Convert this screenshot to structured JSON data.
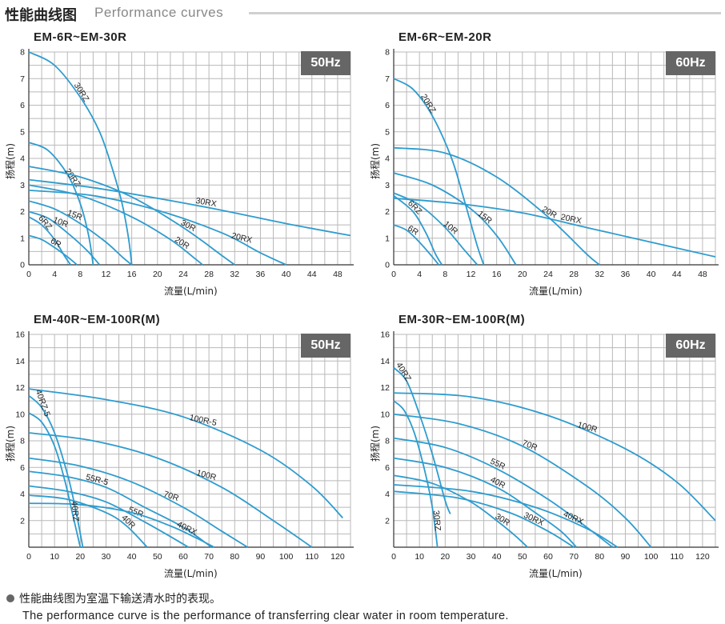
{
  "header": {
    "title_zh": "性能曲线图",
    "title_en": "Performance curves"
  },
  "footer": {
    "note_zh": "性能曲线图为室温下输送清水时的表现。",
    "note_en": "The performance curve is the performance of transferring clear water in room temperature."
  },
  "chart_data": [
    {
      "type": "line",
      "title": "EM-6R~EM-30R",
      "frequency": "50Hz",
      "xlabel": "流量(L/min)",
      "ylabel": "扬程(m)",
      "xlim": [
        0,
        50
      ],
      "ylim": [
        0,
        8
      ],
      "xticks": [
        0,
        4,
        8,
        12,
        16,
        20,
        24,
        28,
        32,
        36,
        40,
        44,
        48
      ],
      "yticks": [
        0,
        1,
        2,
        3,
        4,
        5,
        6,
        7,
        8
      ],
      "grid": true,
      "series": [
        {
          "name": "30RZ",
          "x": [
            0,
            4,
            8,
            11,
            13,
            14.5,
            15.5,
            16
          ],
          "y": [
            8,
            7.5,
            6.3,
            5,
            3.6,
            2.3,
            1,
            0
          ]
        },
        {
          "name": "20RZ",
          "x": [
            0,
            3,
            6,
            8,
            9.3,
            10
          ],
          "y": [
            4.6,
            4.3,
            3.4,
            2.3,
            1.1,
            0
          ]
        },
        {
          "name": "30RX",
          "x": [
            0,
            10,
            20,
            30,
            40,
            50
          ],
          "y": [
            3.2,
            2.9,
            2.5,
            2.05,
            1.55,
            1.1
          ]
        },
        {
          "name": "20RX",
          "x": [
            0,
            10,
            20,
            30,
            36,
            40
          ],
          "y": [
            2.8,
            2.6,
            2.05,
            1.2,
            0.45,
            0
          ]
        },
        {
          "name": "30R",
          "x": [
            0,
            8,
            16,
            24,
            30,
            32
          ],
          "y": [
            3.7,
            3.3,
            2.55,
            1.4,
            0.35,
            0
          ]
        },
        {
          "name": "20R",
          "x": [
            0,
            8,
            16,
            22,
            26,
            27
          ],
          "y": [
            3.0,
            2.6,
            1.8,
            0.95,
            0.2,
            0
          ]
        },
        {
          "name": "15R",
          "x": [
            0,
            4,
            8,
            12,
            14.5,
            16
          ],
          "y": [
            2.4,
            2.1,
            1.55,
            0.85,
            0.3,
            0
          ]
        },
        {
          "name": "10R",
          "x": [
            0,
            3,
            6,
            9,
            11
          ],
          "y": [
            2.0,
            1.75,
            1.2,
            0.55,
            0
          ]
        },
        {
          "name": "6RZ",
          "x": [
            0,
            2,
            4,
            5.5,
            6.5
          ],
          "y": [
            1.8,
            1.5,
            0.95,
            0.35,
            0
          ]
        },
        {
          "name": "6R",
          "x": [
            0,
            2,
            4,
            6,
            7.5
          ],
          "y": [
            1.1,
            0.95,
            0.65,
            0.3,
            0
          ]
        }
      ]
    },
    {
      "type": "line",
      "title": "EM-6R~EM-20R",
      "frequency": "60Hz",
      "xlabel": "流量(L/min)",
      "ylabel": "扬程(m)",
      "xlim": [
        0,
        50
      ],
      "ylim": [
        0,
        8
      ],
      "xticks": [
        0,
        4,
        8,
        12,
        16,
        20,
        24,
        28,
        32,
        36,
        40,
        44,
        48
      ],
      "yticks": [
        0,
        1,
        2,
        3,
        4,
        5,
        6,
        7,
        8
      ],
      "grid": true,
      "series": [
        {
          "name": "20RZ",
          "x": [
            0,
            3,
            6,
            9,
            11,
            13,
            14
          ],
          "y": [
            7.0,
            6.6,
            5.6,
            4.0,
            2.4,
            0.7,
            0
          ]
        },
        {
          "name": "20R",
          "x": [
            0,
            8,
            16,
            24,
            30,
            32
          ],
          "y": [
            4.4,
            4.2,
            3.3,
            1.8,
            0.4,
            0
          ]
        },
        {
          "name": "20RX",
          "x": [
            0,
            10,
            20,
            30,
            40,
            50
          ],
          "y": [
            2.5,
            2.3,
            1.95,
            1.4,
            0.85,
            0.3
          ]
        },
        {
          "name": "15R",
          "x": [
            0,
            6,
            12,
            16,
            19
          ],
          "y": [
            3.45,
            3.0,
            2.1,
            1.1,
            0
          ]
        },
        {
          "name": "10R",
          "x": [
            0,
            4,
            8,
            11,
            13
          ],
          "y": [
            2.7,
            2.25,
            1.4,
            0.55,
            0
          ]
        },
        {
          "name": "6RZ",
          "x": [
            0,
            3,
            5,
            6.5,
            7.5
          ],
          "y": [
            2.6,
            2.0,
            1.2,
            0.4,
            0
          ]
        },
        {
          "name": "6R",
          "x": [
            0,
            2,
            4,
            6,
            7
          ],
          "y": [
            1.5,
            1.3,
            0.85,
            0.3,
            0
          ]
        }
      ]
    },
    {
      "type": "line",
      "title": "EM-40R~EM-100R(M)",
      "frequency": "50Hz",
      "xlabel": "流量(L/min)",
      "ylabel": "扬程(m)",
      "xlim": [
        0,
        125
      ],
      "ylim": [
        0,
        16
      ],
      "xticks": [
        0,
        10,
        20,
        30,
        40,
        50,
        60,
        70,
        80,
        90,
        100,
        110,
        120
      ],
      "yticks": [
        2,
        4,
        6,
        8,
        10,
        12,
        14,
        16
      ],
      "grid": true,
      "series": [
        {
          "name": "100R-5",
          "x": [
            0,
            30,
            60,
            90,
            110,
            122
          ],
          "y": [
            11.9,
            11.1,
            9.8,
            7.3,
            4.6,
            2.2
          ]
        },
        {
          "name": "100R",
          "x": [
            0,
            25,
            50,
            75,
            95,
            110
          ],
          "y": [
            8.6,
            8.0,
            6.7,
            4.5,
            2.0,
            0
          ]
        },
        {
          "name": "70R",
          "x": [
            0,
            20,
            40,
            60,
            75,
            85
          ],
          "y": [
            6.7,
            6.1,
            4.9,
            3.0,
            1.2,
            0
          ]
        },
        {
          "name": "55R-5",
          "x": [
            0,
            15,
            30,
            45,
            60,
            71
          ],
          "y": [
            5.7,
            5.3,
            4.5,
            3.0,
            1.5,
            0
          ]
        },
        {
          "name": "55R",
          "x": [
            0,
            15,
            30,
            45,
            55,
            62
          ],
          "y": [
            4.6,
            4.2,
            3.4,
            1.9,
            0.8,
            0
          ]
        },
        {
          "name": "40RX",
          "x": [
            0,
            20,
            40,
            55,
            65,
            72
          ],
          "y": [
            3.3,
            3.2,
            2.6,
            1.6,
            0.7,
            0
          ]
        },
        {
          "name": "40RZ-5",
          "x": [
            0,
            5,
            10,
            15,
            18,
            21
          ],
          "y": [
            11.4,
            10.5,
            8.6,
            5.5,
            3.0,
            0
          ]
        },
        {
          "name": "40RZ",
          "x": [
            0,
            5,
            10,
            14,
            17,
            20
          ],
          "y": [
            10.1,
            9.4,
            7.6,
            5.0,
            2.5,
            0
          ]
        },
        {
          "name": "40R",
          "x": [
            0,
            15,
            30,
            38,
            46
          ],
          "y": [
            3.9,
            3.6,
            2.6,
            1.6,
            0
          ]
        }
      ]
    },
    {
      "type": "line",
      "title": "EM-30R~EM-100R(M)",
      "frequency": "60Hz",
      "xlabel": "流量(L/min)",
      "ylabel": "扬程(m)",
      "xlim": [
        0,
        125
      ],
      "ylim": [
        0,
        16
      ],
      "xticks": [
        0,
        10,
        20,
        30,
        40,
        50,
        60,
        70,
        80,
        90,
        100,
        110,
        120
      ],
      "yticks": [
        2,
        4,
        6,
        8,
        10,
        12,
        14,
        16
      ],
      "grid": true,
      "series": [
        {
          "name": "100R",
          "x": [
            0,
            30,
            60,
            90,
            110,
            125
          ],
          "y": [
            11.6,
            11.3,
            9.9,
            7.4,
            4.9,
            2.0
          ]
        },
        {
          "name": "70R",
          "x": [
            0,
            25,
            50,
            75,
            90,
            100
          ],
          "y": [
            10.0,
            9.3,
            7.6,
            4.6,
            2.2,
            0
          ]
        },
        {
          "name": "55R",
          "x": [
            0,
            20,
            40,
            60,
            75,
            85
          ],
          "y": [
            8.2,
            7.5,
            5.9,
            3.6,
            1.5,
            0
          ]
        },
        {
          "name": "40R",
          "x": [
            0,
            20,
            40,
            55,
            65,
            71
          ],
          "y": [
            6.7,
            6.0,
            4.5,
            2.6,
            1.2,
            0
          ]
        },
        {
          "name": "30R",
          "x": [
            0,
            15,
            30,
            40,
            47,
            52
          ],
          "y": [
            5.4,
            4.8,
            3.4,
            2.0,
            0.9,
            0
          ]
        },
        {
          "name": "40RX",
          "x": [
            0,
            30,
            55,
            75,
            87
          ],
          "y": [
            4.7,
            4.2,
            3.0,
            1.4,
            0
          ]
        },
        {
          "name": "30RX",
          "x": [
            0,
            25,
            45,
            60,
            70
          ],
          "y": [
            4.2,
            3.7,
            2.6,
            1.2,
            0
          ]
        },
        {
          "name": "40RZ",
          "x": [
            0,
            5,
            10,
            15,
            20,
            22
          ],
          "y": [
            13.5,
            12.5,
            10.0,
            7.0,
            3.5,
            2.5
          ]
        },
        {
          "name": "30RZ",
          "x": [
            0,
            4,
            8,
            12,
            15,
            17
          ],
          "y": [
            11.0,
            10.3,
            8.6,
            5.8,
            3.0,
            0
          ]
        }
      ]
    }
  ]
}
